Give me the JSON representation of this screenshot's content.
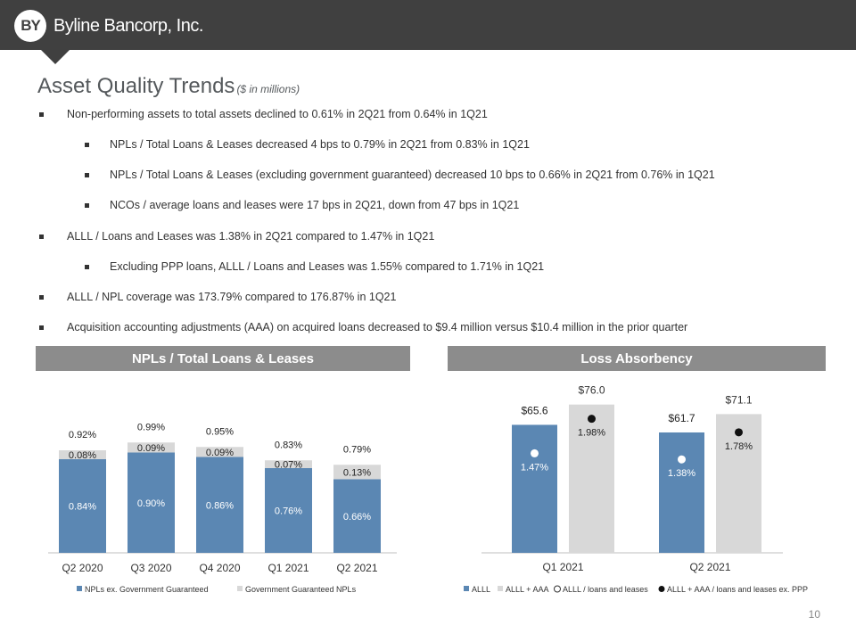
{
  "header": {
    "logo_mark": "BY",
    "company": "Byline Bancorp, Inc.",
    "title": "Asset Quality Trends",
    "subtitle": "($ in millions)"
  },
  "bullets": [
    {
      "level": 1,
      "text": "Non-performing assets to total assets declined to 0.61% in 2Q21 from 0.64% in 1Q21"
    },
    {
      "level": 2,
      "text": "NPLs / Total Loans & Leases decreased 4 bps to 0.79% in 2Q21 from 0.83% in 1Q21"
    },
    {
      "level": 2,
      "text": "NPLs / Total Loans & Leases (excluding government guaranteed) decreased 10 bps to 0.66% in 2Q21 from 0.76% in 1Q21"
    },
    {
      "level": 2,
      "text": "NCOs / average loans and leases were 17 bps in 2Q21, down from 47 bps in 1Q21"
    },
    {
      "level": 1,
      "text": "ALLL / Loans and Leases was 1.38% in 2Q21 compared to 1.47% in 1Q21"
    },
    {
      "level": 2,
      "text": "Excluding PPP loans, ALLL / Loans and Leases was 1.55% compared to 1.71% in 1Q21"
    },
    {
      "level": 1,
      "text": "ALLL / NPL coverage was 173.79% compared to 176.87% in 1Q21"
    },
    {
      "level": 1,
      "text": "Acquisition accounting adjustments (AAA) on acquired loans decreased to $9.4 million versus $10.4 million in the prior quarter"
    }
  ],
  "colors": {
    "blue": "#5b87b3",
    "gray": "#d8d8d8",
    "dark": "#404040",
    "panel": "#8c8c8c"
  },
  "chart_data": [
    {
      "type": "bar",
      "stacked": true,
      "title": "NPLs / Total Loans & Leases",
      "categories": [
        "Q2 2020",
        "Q3 2020",
        "Q4 2020",
        "Q1 2021",
        "Q2 2021"
      ],
      "series": [
        {
          "name": "NPLs ex. Government Guaranteed",
          "values": [
            0.84,
            0.9,
            0.86,
            0.76,
            0.66
          ],
          "labels": [
            "0.84%",
            "0.90%",
            "0.86%",
            "0.76%",
            "0.66%"
          ],
          "color": "#5b87b3"
        },
        {
          "name": "Government Guaranteed NPLs",
          "values": [
            0.08,
            0.09,
            0.09,
            0.07,
            0.13
          ],
          "labels": [
            "0.08%",
            "0.09%",
            "0.09%",
            "0.07%",
            "0.13%"
          ],
          "color": "#d8d8d8"
        }
      ],
      "totals": [
        0.92,
        0.99,
        0.95,
        0.83,
        0.79
      ],
      "total_labels": [
        "0.92%",
        "0.99%",
        "0.95%",
        "0.83%",
        "0.79%"
      ],
      "ylim": [
        0,
        1.12
      ],
      "legend": "bottom"
    },
    {
      "type": "bar",
      "title": "Loss Absorbency",
      "categories": [
        "Q1 2021",
        "Q2 2021"
      ],
      "series": [
        {
          "name": "ALLL",
          "values": [
            65.6,
            61.7
          ],
          "labels": [
            "$65.6",
            "$61.7"
          ],
          "color": "#5b87b3"
        },
        {
          "name": "ALLL + AAA",
          "values": [
            76.0,
            71.1
          ],
          "labels": [
            "$76.0",
            "$71.1"
          ],
          "color": "#d8d8d8"
        }
      ],
      "ratios": [
        {
          "name": "ALLL / loans and leases",
          "values": [
            1.47,
            1.38
          ],
          "labels": [
            "1.47%",
            "1.38%"
          ],
          "marker": "hollow"
        },
        {
          "name": "ALLL + AAA / loans and leases ex. PPP",
          "values": [
            1.98,
            1.78
          ],
          "labels": [
            "1.98%",
            "1.78%"
          ],
          "marker": "filled"
        }
      ],
      "ylim": [
        0,
        85
      ],
      "legend": "bottom"
    }
  ],
  "page_number": "10"
}
